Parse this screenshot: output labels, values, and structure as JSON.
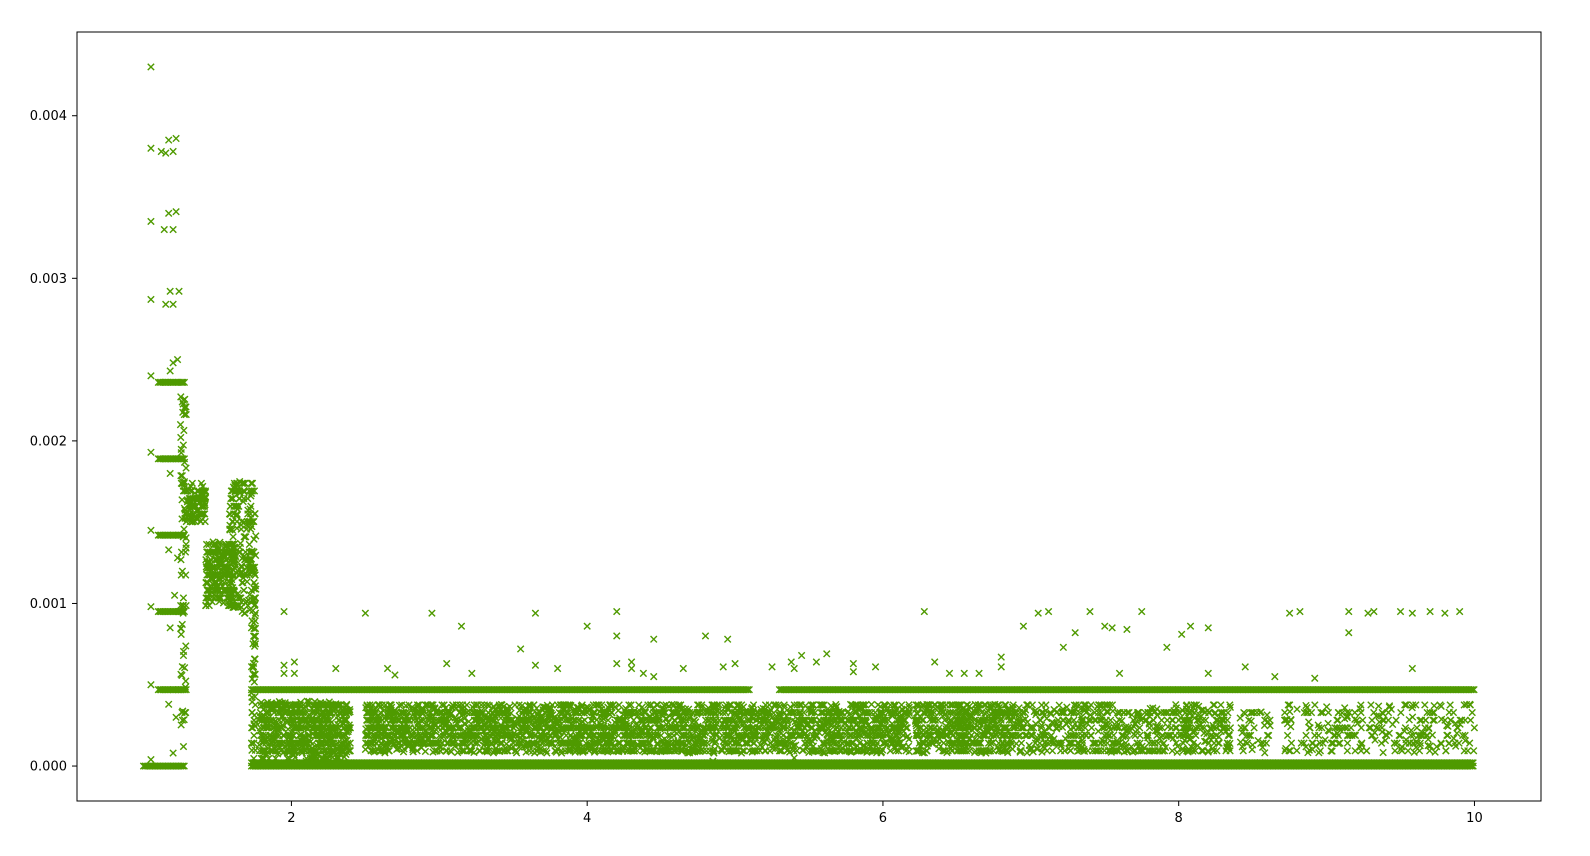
{
  "chart_data": {
    "type": "scatter",
    "title": "",
    "xlabel": "",
    "ylabel": "",
    "xlim": [
      0.55,
      10.45
    ],
    "ylim": [
      -0.000215,
      0.004515
    ],
    "xticks": [
      {
        "value": 2,
        "label": "2"
      },
      {
        "value": 4,
        "label": "4"
      },
      {
        "value": 6,
        "label": "6"
      },
      {
        "value": 8,
        "label": "8"
      },
      {
        "value": 10,
        "label": "10"
      }
    ],
    "yticks": [
      {
        "value": 0.0,
        "label": "0.000"
      },
      {
        "value": 0.001,
        "label": "0.001"
      },
      {
        "value": 0.002,
        "label": "0.002"
      },
      {
        "value": 0.003,
        "label": "0.003"
      },
      {
        "value": 0.004,
        "label": "0.004"
      }
    ],
    "grid": false,
    "legend": "none",
    "marker": "x",
    "color": "#4f9a00",
    "series": [
      {
        "points": [
          [
            1.05,
            0.0043
          ],
          [
            1.05,
            0.0038
          ],
          [
            1.05,
            0.00335
          ],
          [
            1.05,
            0.00287
          ],
          [
            1.05,
            0.0024
          ],
          [
            1.05,
            0.00193
          ],
          [
            1.05,
            0.00145
          ],
          [
            1.05,
            0.00098
          ],
          [
            1.05,
            0.0005
          ],
          [
            1.05,
            4e-05
          ],
          [
            1.12,
            0.00378
          ],
          [
            1.15,
            0.00377
          ],
          [
            1.17,
            0.00385
          ],
          [
            1.2,
            0.00378
          ],
          [
            1.22,
            0.00386
          ],
          [
            1.14,
            0.0033
          ],
          [
            1.17,
            0.0034
          ],
          [
            1.2,
            0.0033
          ],
          [
            1.22,
            0.00341
          ],
          [
            1.15,
            0.00284
          ],
          [
            1.18,
            0.00292
          ],
          [
            1.2,
            0.00284
          ],
          [
            1.24,
            0.00292
          ],
          [
            1.15,
            0.00236
          ],
          [
            1.18,
            0.00243
          ],
          [
            1.2,
            0.00248
          ],
          [
            1.23,
            0.0025
          ],
          [
            1.26,
            0.00236
          ],
          [
            1.15,
            0.00189
          ],
          [
            1.18,
            0.0018
          ],
          [
            1.22,
            0.00189
          ],
          [
            1.25,
            0.0021
          ],
          [
            1.27,
            0.00225
          ],
          [
            1.12,
            0.00142
          ],
          [
            1.17,
            0.00133
          ],
          [
            1.2,
            0.00142
          ],
          [
            1.23,
            0.00128
          ],
          [
            1.26,
            0.00152
          ],
          [
            1.12,
            0.00095
          ],
          [
            1.18,
            0.00085
          ],
          [
            1.21,
            0.00105
          ],
          [
            1.24,
            0.00095
          ],
          [
            1.27,
            0.00068
          ],
          [
            1.12,
            0.00047
          ],
          [
            1.17,
            0.00038
          ],
          [
            1.2,
            0.00047
          ],
          [
            1.22,
            0.0003
          ],
          [
            1.26,
            0.00033
          ],
          [
            1.2,
            8e-05
          ],
          [
            1.27,
            0.00012
          ],
          [
            1.35,
            0.00165
          ],
          [
            1.38,
            0.00155
          ],
          [
            1.4,
            0.00172
          ],
          [
            1.45,
            0.0012
          ],
          [
            1.5,
            0.0011
          ],
          [
            1.55,
            0.00135
          ],
          [
            1.58,
            0.00105
          ],
          [
            1.62,
            0.00098
          ],
          [
            1.65,
            0.00175
          ],
          [
            1.68,
            0.0015
          ],
          [
            1.72,
            0.00125
          ],
          [
            1.73,
            0.00085
          ],
          [
            1.73,
            0.00045
          ],
          [
            1.95,
            0.00095
          ],
          [
            1.95,
            0.00062
          ],
          [
            1.95,
            0.00057
          ],
          [
            2.02,
            0.00064
          ],
          [
            2.02,
            0.00057
          ],
          [
            2.1,
            3e-05
          ],
          [
            2.3,
            0.0006
          ],
          [
            2.5,
            0.00094
          ],
          [
            2.4,
            2e-05
          ],
          [
            2.65,
            0.0006
          ],
          [
            2.7,
            0.00056
          ],
          [
            2.95,
            0.00094
          ],
          [
            3.05,
            0.00063
          ],
          [
            3.15,
            0.00086
          ],
          [
            3.22,
            0.00057
          ],
          [
            3.55,
            0.00072
          ],
          [
            3.65,
            0.00094
          ],
          [
            3.65,
            0.00062
          ],
          [
            3.8,
            0.0006
          ],
          [
            4.0,
            0.00086
          ],
          [
            4.2,
            0.00095
          ],
          [
            4.2,
            0.0008
          ],
          [
            4.2,
            0.00063
          ],
          [
            4.3,
            0.00064
          ],
          [
            4.3,
            0.0006
          ],
          [
            4.38,
            0.00057
          ],
          [
            4.45,
            0.00078
          ],
          [
            4.45,
            0.00055
          ],
          [
            4.65,
            0.0006
          ],
          [
            4.8,
            0.0008
          ],
          [
            4.95,
            0.00078
          ],
          [
            4.92,
            0.00061
          ],
          [
            5.0,
            0.00063
          ],
          [
            5.25,
            0.00061
          ],
          [
            5.38,
            0.00064
          ],
          [
            5.4,
            0.0006
          ],
          [
            5.45,
            0.00068
          ],
          [
            5.55,
            0.00064
          ],
          [
            5.62,
            0.00069
          ],
          [
            5.8,
            0.00063
          ],
          [
            5.8,
            0.00058
          ],
          [
            5.95,
            0.00061
          ],
          [
            6.28,
            0.00095
          ],
          [
            6.35,
            0.00064
          ],
          [
            6.45,
            0.00057
          ],
          [
            6.55,
            0.00057
          ],
          [
            6.65,
            0.00057
          ],
          [
            6.8,
            0.00067
          ],
          [
            6.8,
            0.00061
          ],
          [
            6.95,
            0.00086
          ],
          [
            7.05,
            0.00094
          ],
          [
            7.12,
            0.00095
          ],
          [
            7.22,
            0.00073
          ],
          [
            7.3,
            0.00082
          ],
          [
            7.4,
            0.00095
          ],
          [
            7.5,
            0.00086
          ],
          [
            7.55,
            0.00085
          ],
          [
            7.6,
            0.00057
          ],
          [
            7.65,
            0.00084
          ],
          [
            7.75,
            0.00095
          ],
          [
            7.92,
            0.00073
          ],
          [
            8.02,
            0.00081
          ],
          [
            8.08,
            0.00086
          ],
          [
            8.2,
            0.00085
          ],
          [
            8.2,
            0.00057
          ],
          [
            8.45,
            0.00061
          ],
          [
            8.5,
            0.00013
          ],
          [
            8.55,
            2e-05
          ],
          [
            8.65,
            0.00055
          ],
          [
            8.75,
            0.00094
          ],
          [
            8.82,
            0.00095
          ],
          [
            8.92,
            0.00054
          ],
          [
            9.15,
            0.00095
          ],
          [
            9.15,
            0.00082
          ],
          [
            9.28,
            0.00094
          ],
          [
            9.32,
            0.00095
          ],
          [
            9.5,
            0.00095
          ],
          [
            9.58,
            0.00094
          ],
          [
            9.58,
            0.0006
          ],
          [
            9.7,
            0.00095
          ],
          [
            9.8,
            0.00094
          ],
          [
            9.9,
            0.00095
          ],
          [
            5.4,
            5e-05
          ],
          [
            4.85,
            3e-05
          ]
        ],
        "bands": [
          {
            "x": [
              1.0,
              1.28
            ],
            "y": [
              0.0,
              0.0
            ]
          },
          {
            "x": [
              1.73,
              10.0
            ],
            "y": [
              0.0,
              0.0
            ]
          },
          {
            "x": [
              1.73,
              10.0
            ],
            "y": [
              2e-05,
              2e-05
            ]
          },
          {
            "x": [
              1.73,
              5.1
            ],
            "y": [
              0.00047,
              0.00047
            ]
          },
          {
            "x": [
              5.3,
              10.0
            ],
            "y": [
              0.00047,
              0.00047
            ]
          },
          {
            "x": [
              1.1,
              1.28
            ],
            "y": [
              0.00189,
              0.00189
            ]
          },
          {
            "x": [
              1.1,
              1.28
            ],
            "y": [
              0.00142,
              0.00142
            ]
          },
          {
            "x": [
              1.1,
              1.28
            ],
            "y": [
              0.00095,
              0.00095
            ]
          },
          {
            "x": [
              1.1,
              1.28
            ],
            "y": [
              0.00047,
              0.00047
            ]
          },
          {
            "x": [
              1.1,
              1.28
            ],
            "y": [
              0.00236,
              0.00236
            ]
          }
        ],
        "clusters": [
          {
            "x": [
              1.28,
              1.42
            ],
            "y": [
              0.0015,
              0.00173
            ],
            "count": 110
          },
          {
            "x": [
              1.42,
              1.62
            ],
            "y": [
              0.001,
              0.00138
            ],
            "count": 220
          },
          {
            "x": [
              1.58,
              1.76
            ],
            "y": [
              0.00095,
              0.00177
            ],
            "count": 200
          },
          {
            "x": [
              1.25,
              1.29
            ],
            "y": [
              0.00025,
              0.0023
            ],
            "count": 70
          },
          {
            "x": [
              1.73,
              1.76
            ],
            "y": [
              0.0,
              0.0012
            ],
            "count": 60
          },
          {
            "x": [
              1.78,
              2.4
            ],
            "y": [
              5e-05,
              0.0004
            ],
            "count": 650
          },
          {
            "x": [
              2.5,
              6.18
            ],
            "y": [
              8e-05,
              0.00038
            ],
            "count": 2600
          },
          {
            "x": [
              6.22,
              6.85
            ],
            "y": [
              8e-05,
              0.00038
            ],
            "count": 450
          },
          {
            "x": [
              6.85,
              8.35
            ],
            "y": [
              8e-05,
              0.00038
            ],
            "count": 620
          },
          {
            "x": [
              8.4,
              8.62
            ],
            "y": [
              8e-05,
              0.00038
            ],
            "count": 40
          },
          {
            "x": [
              8.7,
              10.0
            ],
            "y": [
              8e-05,
              0.00038
            ],
            "count": 260
          }
        ]
      }
    ]
  }
}
